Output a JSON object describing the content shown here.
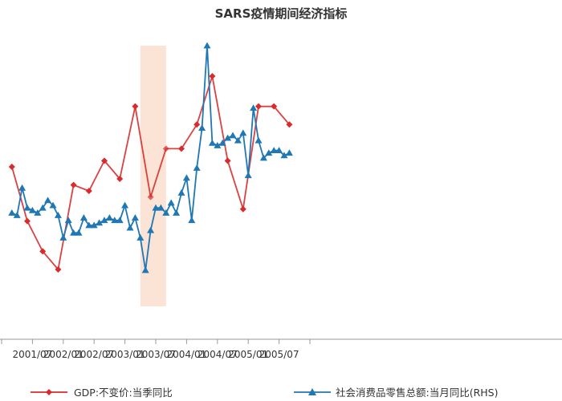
{
  "chart_data": {
    "type": "line",
    "title": "SARS疫情期间经济指标",
    "colors": {
      "gdp": "#d92b2b",
      "retail": "#1f77b4",
      "highlight": "#fbe3d6",
      "axis": "#999999"
    },
    "x_ticks": [
      "2001/07",
      "2002/01",
      "2002/07",
      "2003/01",
      "2003/07",
      "2004/01",
      "2004/07",
      "2005/01",
      "2005/07"
    ],
    "highlight_range": [
      "2003/04",
      "2003/09"
    ],
    "legend_placement": "bottom",
    "series": [
      {
        "key": "gdp",
        "name": "GDP:不变价:当季同比",
        "marker": "diamond",
        "axis": "left",
        "x": [
          "2001/03",
          "2001/06",
          "2001/09",
          "2001/12",
          "2002/03",
          "2002/06",
          "2002/09",
          "2002/12",
          "2003/03",
          "2003/06",
          "2003/09",
          "2003/12",
          "2004/03",
          "2004/06",
          "2004/09",
          "2004/12",
          "2005/03",
          "2005/06",
          "2005/09"
        ],
        "values": [
          8.3,
          7.4,
          6.9,
          6.6,
          8.0,
          7.9,
          8.4,
          8.1,
          9.3,
          7.8,
          8.6,
          8.6,
          9.0,
          9.8,
          8.4,
          7.6,
          9.3,
          9.3,
          9.0
        ]
      },
      {
        "key": "retail",
        "name": "社会消费品零售总额:当月同比(RHS)",
        "marker": "triangle",
        "axis": "right",
        "x": [
          "2001/03",
          "2001/04",
          "2001/05",
          "2001/06",
          "2001/07",
          "2001/08",
          "2001/09",
          "2001/10",
          "2001/11",
          "2001/12",
          "2002/01",
          "2002/02",
          "2002/03",
          "2002/04",
          "2002/05",
          "2002/06",
          "2002/07",
          "2002/08",
          "2002/09",
          "2002/10",
          "2002/11",
          "2002/12",
          "2003/01",
          "2003/02",
          "2003/03",
          "2003/04",
          "2003/05",
          "2003/06",
          "2003/07",
          "2003/08",
          "2003/09",
          "2003/10",
          "2003/11",
          "2003/12",
          "2004/01",
          "2004/02",
          "2004/03",
          "2004/04",
          "2004/05",
          "2004/06",
          "2004/07",
          "2004/08",
          "2004/09",
          "2004/10",
          "2004/11",
          "2004/12",
          "2005/01",
          "2005/02",
          "2005/03",
          "2005/04",
          "2005/05",
          "2005/06",
          "2005/07",
          "2005/08",
          "2005/09"
        ],
        "values": [
          9.8,
          9.7,
          10.8,
          10.0,
          9.9,
          9.8,
          10.0,
          10.3,
          10.1,
          9.7,
          8.8,
          9.5,
          9.0,
          9.0,
          9.6,
          9.3,
          9.3,
          9.4,
          9.5,
          9.6,
          9.5,
          9.5,
          10.1,
          9.2,
          9.6,
          8.8,
          7.5,
          9.1,
          10.0,
          10.0,
          9.8,
          10.2,
          9.8,
          10.6,
          11.2,
          9.5,
          11.6,
          13.2,
          16.5,
          12.6,
          12.5,
          12.6,
          12.8,
          12.9,
          12.7,
          13.0,
          11.3,
          14.0,
          12.7,
          12.0,
          12.2,
          12.3,
          12.3,
          12.1,
          12.2
        ]
      }
    ]
  }
}
